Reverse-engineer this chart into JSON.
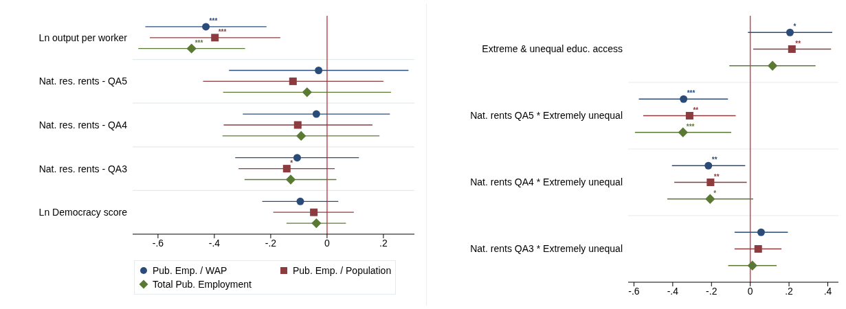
{
  "chart_data": [
    {
      "type": "scatter",
      "orientation": "horizontal",
      "categories": [
        "Ln output per worker",
        "Nat. res. rents - QA5",
        "Nat. res. rents - QA4",
        "Nat. res. rents - QA3",
        "Ln Democracy score"
      ],
      "series": [
        {
          "name": "Pub. Emp. / WAP",
          "color": "#2b4b78",
          "marker": "circle",
          "values": [
            -0.43,
            -0.03,
            -0.038,
            -0.106,
            -0.095
          ],
          "errors": [
            [
              -0.645,
              -0.215
            ],
            [
              -0.348,
              0.289
            ],
            [
              -0.299,
              0.223
            ],
            [
              -0.326,
              0.113
            ],
            [
              -0.23,
              0.04
            ]
          ],
          "value_labels": [
            "***",
            null,
            null,
            null,
            null
          ]
        },
        {
          "name": "Pub. Emp. / Population",
          "color": "#8c3b3e",
          "marker": "square",
          "values": [
            -0.398,
            -0.121,
            -0.104,
            -0.143,
            -0.047
          ],
          "errors": [
            [
              -0.629,
              -0.166
            ],
            [
              -0.44,
              0.2
            ],
            [
              -0.367,
              0.161
            ],
            [
              -0.314,
              0.027
            ],
            [
              -0.191,
              0.095
            ]
          ],
          "value_labels": [
            "***",
            null,
            null,
            "*",
            null
          ]
        },
        {
          "name": "Total Pub. Employment",
          "color": "#5a7a34",
          "marker": "diamond",
          "values": [
            -0.481,
            -0.071,
            -0.092,
            -0.129,
            -0.038
          ],
          "errors": [
            [
              -0.67,
              -0.291
            ],
            [
              -0.369,
              0.227
            ],
            [
              -0.371,
              0.186
            ],
            [
              -0.293,
              0.033
            ],
            [
              -0.144,
              0.067
            ]
          ],
          "value_labels": [
            "***",
            null,
            null,
            null,
            null
          ]
        }
      ],
      "xlim": [
        -0.69,
        0.31
      ],
      "xticks": [
        {
          "value": -0.6,
          "label": "-.6"
        },
        {
          "value": -0.4,
          "label": "-.4"
        },
        {
          "value": -0.2,
          "label": "-.2"
        },
        0,
        {
          "value": 0.2,
          "label": ".2"
        }
      ],
      "ref_lines": [
        {
          "axis": "x",
          "value": 0,
          "color": "#c8494f"
        }
      ],
      "grid": "y",
      "legend": "bottom"
    },
    {
      "type": "scatter",
      "orientation": "horizontal",
      "categories": [
        "Extreme & unequal educ. access",
        "Nat. rents QA5 * Extremely unequal",
        "Nat. rents QA4 * Extremely unequal",
        "Nat. rents QA3 * Extremely unequal"
      ],
      "series": [
        {
          "color": "#2b4b78",
          "marker": "circle",
          "values": [
            0.205,
            -0.344,
            -0.216,
            0.056
          ],
          "errors": [
            [
              -0.012,
              0.423
            ],
            [
              -0.575,
              -0.115
            ],
            [
              -0.404,
              -0.026
            ],
            [
              -0.081,
              0.194
            ]
          ],
          "value_labels": [
            "*",
            "***",
            "**",
            null
          ]
        },
        {
          "color": "#8c3b3e",
          "marker": "square",
          "values": [
            0.215,
            -0.313,
            -0.205,
            0.041
          ],
          "errors": [
            [
              0.015,
              0.417
            ],
            [
              -0.552,
              -0.075
            ],
            [
              -0.392,
              -0.018
            ],
            [
              -0.081,
              0.161
            ]
          ],
          "value_labels": [
            "**",
            "**",
            "**",
            null
          ]
        },
        {
          "color": "#5a7a34",
          "marker": "diamond",
          "values": [
            0.115,
            -0.347,
            -0.207,
            0.011
          ],
          "errors": [
            [
              -0.108,
              0.337
            ],
            [
              -0.595,
              -0.098
            ],
            [
              -0.428,
              0.015
            ],
            [
              -0.114,
              0.136
            ]
          ],
          "value_labels": [
            null,
            "***",
            "*",
            null
          ]
        }
      ],
      "xlim": [
        -0.63,
        0.455
      ],
      "xticks": [
        {
          "value": -0.6,
          "label": "-.6"
        },
        {
          "value": -0.4,
          "label": "-.4"
        },
        {
          "value": -0.2,
          "label": "-.2"
        },
        0,
        {
          "value": 0.2,
          "label": ".2"
        },
        {
          "value": 0.4,
          "label": ".4"
        }
      ],
      "ref_lines": [
        {
          "axis": "x",
          "value": 0,
          "color": "#c8494f"
        }
      ],
      "grid": "y"
    }
  ]
}
